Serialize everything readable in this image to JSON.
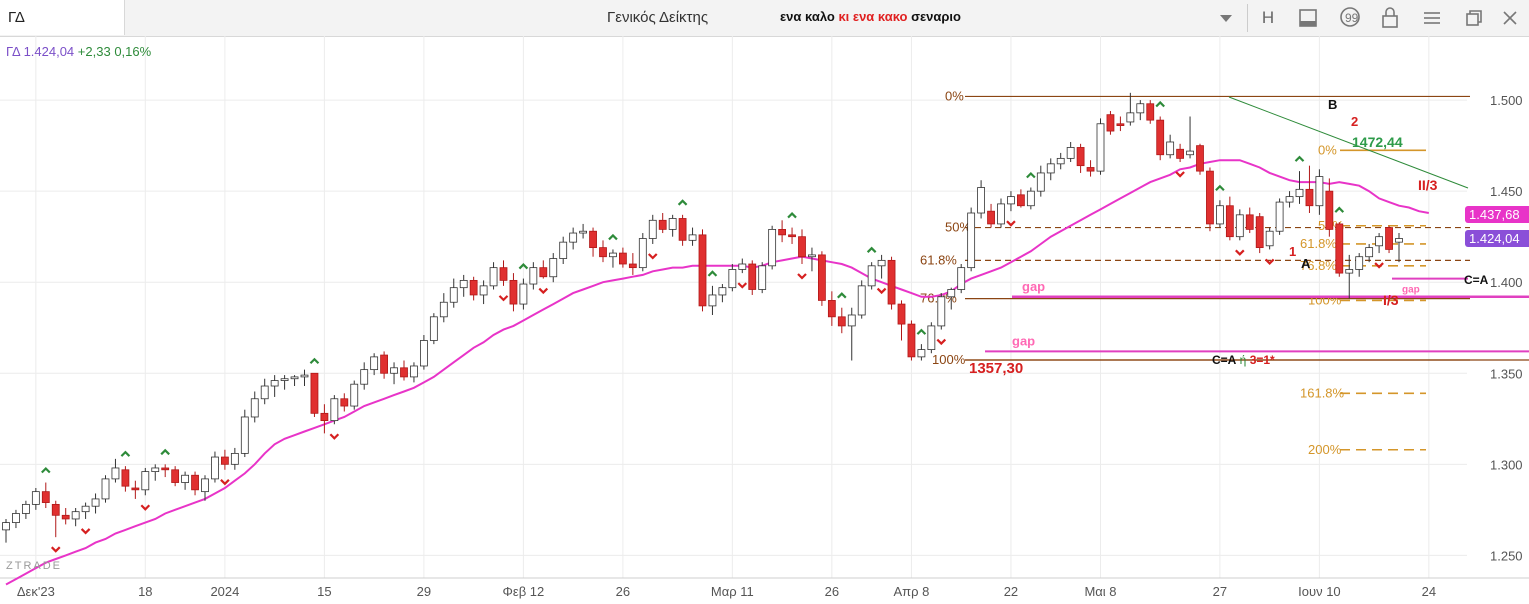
{
  "toolbar": {
    "symbol": "ΓΔ",
    "window_title": "Γενικός Δείκτης",
    "subtitle_part1": "ενα καλο ",
    "subtitle_part2": "κι ενα κακο ",
    "subtitle_part3": "σεναριο",
    "icons": [
      "chevron-down-icon",
      "h-button",
      "panel-icon",
      "comment-icon",
      "lock-icon",
      "menu-icon",
      "restore-icon",
      "close-icon"
    ],
    "h_label": "H"
  },
  "quote": {
    "name": "ΓΔ",
    "price": "1.424,04",
    "change": "+2,33",
    "pct": "0,16%"
  },
  "colors": {
    "up": "#ffffff",
    "down": "#e03030",
    "ma": "#e834c8",
    "fib_brown": "#8b4513",
    "fib_gold": "#d4962a",
    "gap_line": "#e040c0",
    "green_arrow": "#2e8b3a",
    "red_arrow": "#d62020"
  },
  "chart_data": {
    "type": "candlestick",
    "watermark": "ZTRADE",
    "x_ticks": [
      "Δεκ'23",
      "18",
      "2024",
      "15",
      "29",
      "Φεβ 12",
      "26",
      "Μαρ 11",
      "26",
      "Απρ 8",
      "22",
      "Μαι 8",
      "27",
      "Ιουν 10",
      "24"
    ],
    "y_ticks": [
      "1.500",
      "1.450",
      "1.400",
      "1.350",
      "1.300",
      "1.250"
    ],
    "y_tick_values": [
      1500,
      1450,
      1400,
      1350,
      1300,
      1250
    ],
    "ylim": [
      1223.3,
      1535.2
    ],
    "price_tags": [
      {
        "value": 1437.68,
        "label": "1.437,68",
        "color": "#e834c8"
      },
      {
        "value": 1424.04,
        "label": "1.424,04",
        "color": "#8a4fd8"
      }
    ],
    "candles": [
      {
        "o": 1264,
        "h": 1270,
        "l": 1257,
        "c": 1268
      },
      {
        "o": 1268,
        "h": 1275,
        "l": 1265,
        "c": 1273
      },
      {
        "o": 1273,
        "h": 1280,
        "l": 1270,
        "c": 1278
      },
      {
        "o": 1278,
        "h": 1287,
        "l": 1275,
        "c": 1285
      },
      {
        "o": 1285,
        "h": 1290,
        "l": 1276,
        "c": 1279
      },
      {
        "o": 1278,
        "h": 1280,
        "l": 1260,
        "c": 1272
      },
      {
        "o": 1272,
        "h": 1276,
        "l": 1267,
        "c": 1270
      },
      {
        "o": 1270,
        "h": 1276,
        "l": 1266,
        "c": 1274
      },
      {
        "o": 1274,
        "h": 1279,
        "l": 1270,
        "c": 1277
      },
      {
        "o": 1277,
        "h": 1284,
        "l": 1273,
        "c": 1281
      },
      {
        "o": 1281,
        "h": 1294,
        "l": 1279,
        "c": 1292
      },
      {
        "o": 1292,
        "h": 1303,
        "l": 1290,
        "c": 1298
      },
      {
        "o": 1297,
        "h": 1299,
        "l": 1285,
        "c": 1288
      },
      {
        "o": 1287,
        "h": 1291,
        "l": 1281,
        "c": 1286
      },
      {
        "o": 1286,
        "h": 1298,
        "l": 1283,
        "c": 1296
      },
      {
        "o": 1296,
        "h": 1300,
        "l": 1291,
        "c": 1298
      },
      {
        "o": 1298,
        "h": 1300,
        "l": 1293,
        "c": 1297
      },
      {
        "o": 1297,
        "h": 1299,
        "l": 1288,
        "c": 1290
      },
      {
        "o": 1290,
        "h": 1296,
        "l": 1286,
        "c": 1294
      },
      {
        "o": 1294,
        "h": 1296,
        "l": 1283,
        "c": 1286
      },
      {
        "o": 1285,
        "h": 1294,
        "l": 1280,
        "c": 1292
      },
      {
        "o": 1292,
        "h": 1307,
        "l": 1290,
        "c": 1304
      },
      {
        "o": 1304,
        "h": 1308,
        "l": 1297,
        "c": 1300
      },
      {
        "o": 1300,
        "h": 1309,
        "l": 1297,
        "c": 1306
      },
      {
        "o": 1306,
        "h": 1330,
        "l": 1304,
        "c": 1326
      },
      {
        "o": 1326,
        "h": 1340,
        "l": 1323,
        "c": 1336
      },
      {
        "o": 1336,
        "h": 1347,
        "l": 1333,
        "c": 1343
      },
      {
        "o": 1343,
        "h": 1349,
        "l": 1337,
        "c": 1346
      },
      {
        "o": 1346,
        "h": 1349,
        "l": 1341,
        "c": 1347
      },
      {
        "o": 1347,
        "h": 1349,
        "l": 1343,
        "c": 1348
      },
      {
        "o": 1348,
        "h": 1352,
        "l": 1343,
        "c": 1349
      },
      {
        "o": 1350,
        "h": 1350,
        "l": 1326,
        "c": 1328
      },
      {
        "o": 1328,
        "h": 1333,
        "l": 1317,
        "c": 1324
      },
      {
        "o": 1324,
        "h": 1338,
        "l": 1322,
        "c": 1336
      },
      {
        "o": 1336,
        "h": 1339,
        "l": 1329,
        "c": 1332
      },
      {
        "o": 1332,
        "h": 1346,
        "l": 1330,
        "c": 1344
      },
      {
        "o": 1344,
        "h": 1356,
        "l": 1341,
        "c": 1352
      },
      {
        "o": 1352,
        "h": 1361,
        "l": 1349,
        "c": 1359
      },
      {
        "o": 1360,
        "h": 1362,
        "l": 1347,
        "c": 1350
      },
      {
        "o": 1350,
        "h": 1356,
        "l": 1344,
        "c": 1353
      },
      {
        "o": 1353,
        "h": 1357,
        "l": 1346,
        "c": 1348
      },
      {
        "o": 1348,
        "h": 1356,
        "l": 1345,
        "c": 1354
      },
      {
        "o": 1354,
        "h": 1371,
        "l": 1352,
        "c": 1368
      },
      {
        "o": 1368,
        "h": 1383,
        "l": 1366,
        "c": 1381
      },
      {
        "o": 1381,
        "h": 1394,
        "l": 1378,
        "c": 1389
      },
      {
        "o": 1389,
        "h": 1402,
        "l": 1386,
        "c": 1397
      },
      {
        "o": 1397,
        "h": 1404,
        "l": 1392,
        "c": 1401
      },
      {
        "o": 1401,
        "h": 1403,
        "l": 1390,
        "c": 1393
      },
      {
        "o": 1393,
        "h": 1401,
        "l": 1388,
        "c": 1398
      },
      {
        "o": 1398,
        "h": 1411,
        "l": 1396,
        "c": 1408
      },
      {
        "o": 1408,
        "h": 1412,
        "l": 1398,
        "c": 1401
      },
      {
        "o": 1401,
        "h": 1405,
        "l": 1384,
        "c": 1388
      },
      {
        "o": 1388,
        "h": 1402,
        "l": 1385,
        "c": 1399
      },
      {
        "o": 1399,
        "h": 1411,
        "l": 1396,
        "c": 1408
      },
      {
        "o": 1408,
        "h": 1412,
        "l": 1402,
        "c": 1403
      },
      {
        "o": 1403,
        "h": 1416,
        "l": 1400,
        "c": 1413
      },
      {
        "o": 1413,
        "h": 1425,
        "l": 1410,
        "c": 1422
      },
      {
        "o": 1422,
        "h": 1430,
        "l": 1418,
        "c": 1427
      },
      {
        "o": 1427,
        "h": 1432,
        "l": 1424,
        "c": 1428
      },
      {
        "o": 1428,
        "h": 1430,
        "l": 1414,
        "c": 1419
      },
      {
        "o": 1419,
        "h": 1423,
        "l": 1411,
        "c": 1414
      },
      {
        "o": 1414,
        "h": 1418,
        "l": 1408,
        "c": 1416
      },
      {
        "o": 1416,
        "h": 1419,
        "l": 1408,
        "c": 1410
      },
      {
        "o": 1410,
        "h": 1416,
        "l": 1404,
        "c": 1408
      },
      {
        "o": 1408,
        "h": 1427,
        "l": 1406,
        "c": 1424
      },
      {
        "o": 1424,
        "h": 1437,
        "l": 1421,
        "c": 1434
      },
      {
        "o": 1434,
        "h": 1438,
        "l": 1427,
        "c": 1429
      },
      {
        "o": 1429,
        "h": 1437,
        "l": 1425,
        "c": 1435
      },
      {
        "o": 1435,
        "h": 1437,
        "l": 1420,
        "c": 1423
      },
      {
        "o": 1423,
        "h": 1430,
        "l": 1420,
        "c": 1426
      },
      {
        "o": 1426,
        "h": 1429,
        "l": 1384,
        "c": 1387
      },
      {
        "o": 1387,
        "h": 1398,
        "l": 1382,
        "c": 1393
      },
      {
        "o": 1393,
        "h": 1399,
        "l": 1389,
        "c": 1397
      },
      {
        "o": 1397,
        "h": 1410,
        "l": 1395,
        "c": 1407
      },
      {
        "o": 1407,
        "h": 1413,
        "l": 1405,
        "c": 1410
      },
      {
        "o": 1410,
        "h": 1412,
        "l": 1393,
        "c": 1396
      },
      {
        "o": 1396,
        "h": 1411,
        "l": 1394,
        "c": 1409
      },
      {
        "o": 1409,
        "h": 1431,
        "l": 1407,
        "c": 1429
      },
      {
        "o": 1429,
        "h": 1434,
        "l": 1422,
        "c": 1426
      },
      {
        "o": 1426,
        "h": 1430,
        "l": 1421,
        "c": 1425
      },
      {
        "o": 1425,
        "h": 1429,
        "l": 1410,
        "c": 1414
      },
      {
        "o": 1414,
        "h": 1419,
        "l": 1406,
        "c": 1415
      },
      {
        "o": 1415,
        "h": 1417,
        "l": 1387,
        "c": 1390
      },
      {
        "o": 1390,
        "h": 1395,
        "l": 1376,
        "c": 1381
      },
      {
        "o": 1381,
        "h": 1386,
        "l": 1372,
        "c": 1376
      },
      {
        "o": 1376,
        "h": 1386,
        "l": 1357,
        "c": 1382
      },
      {
        "o": 1382,
        "h": 1401,
        "l": 1380,
        "c": 1398
      },
      {
        "o": 1398,
        "h": 1411,
        "l": 1396,
        "c": 1409
      },
      {
        "o": 1409,
        "h": 1415,
        "l": 1402,
        "c": 1412
      },
      {
        "o": 1412,
        "h": 1414,
        "l": 1385,
        "c": 1388
      },
      {
        "o": 1388,
        "h": 1390,
        "l": 1368,
        "c": 1377
      },
      {
        "o": 1377,
        "h": 1379,
        "l": 1357,
        "c": 1359
      },
      {
        "o": 1359,
        "h": 1366,
        "l": 1357,
        "c": 1363
      },
      {
        "o": 1363,
        "h": 1378,
        "l": 1361,
        "c": 1376
      },
      {
        "o": 1376,
        "h": 1394,
        "l": 1374,
        "c": 1392
      },
      {
        "o": 1392,
        "h": 1397,
        "l": 1385,
        "c": 1396
      },
      {
        "o": 1396,
        "h": 1410,
        "l": 1394,
        "c": 1408
      },
      {
        "o": 1408,
        "h": 1441,
        "l": 1406,
        "c": 1438
      },
      {
        "o": 1438,
        "h": 1456,
        "l": 1435,
        "c": 1452
      },
      {
        "o": 1439,
        "h": 1443,
        "l": 1430,
        "c": 1432
      },
      {
        "o": 1432,
        "h": 1446,
        "l": 1430,
        "c": 1443
      },
      {
        "o": 1443,
        "h": 1450,
        "l": 1439,
        "c": 1447
      },
      {
        "o": 1448,
        "h": 1451,
        "l": 1441,
        "c": 1442
      },
      {
        "o": 1442,
        "h": 1452,
        "l": 1440,
        "c": 1450
      },
      {
        "o": 1450,
        "h": 1464,
        "l": 1447,
        "c": 1460
      },
      {
        "o": 1460,
        "h": 1468,
        "l": 1456,
        "c": 1465
      },
      {
        "o": 1465,
        "h": 1471,
        "l": 1462,
        "c": 1468
      },
      {
        "o": 1468,
        "h": 1477,
        "l": 1466,
        "c": 1474
      },
      {
        "o": 1474,
        "h": 1476,
        "l": 1460,
        "c": 1464
      },
      {
        "o": 1463,
        "h": 1467,
        "l": 1458,
        "c": 1461
      },
      {
        "o": 1461,
        "h": 1490,
        "l": 1459,
        "c": 1487
      },
      {
        "o": 1492,
        "h": 1494,
        "l": 1481,
        "c": 1483
      },
      {
        "o": 1487,
        "h": 1491,
        "l": 1483,
        "c": 1486
      },
      {
        "o": 1488,
        "h": 1504,
        "l": 1486,
        "c": 1493
      },
      {
        "o": 1493,
        "h": 1500,
        "l": 1489,
        "c": 1498
      },
      {
        "o": 1498,
        "h": 1500,
        "l": 1487,
        "c": 1489
      },
      {
        "o": 1489,
        "h": 1491,
        "l": 1467,
        "c": 1470
      },
      {
        "o": 1470,
        "h": 1481,
        "l": 1468,
        "c": 1477
      },
      {
        "o": 1473,
        "h": 1476,
        "l": 1466,
        "c": 1468
      },
      {
        "o": 1470,
        "h": 1491,
        "l": 1468,
        "c": 1472
      },
      {
        "o": 1475,
        "h": 1476,
        "l": 1459,
        "c": 1461
      },
      {
        "o": 1461,
        "h": 1463,
        "l": 1428,
        "c": 1432
      },
      {
        "o": 1432,
        "h": 1445,
        "l": 1430,
        "c": 1442
      },
      {
        "o": 1442,
        "h": 1447,
        "l": 1423,
        "c": 1425
      },
      {
        "o": 1425,
        "h": 1440,
        "l": 1423,
        "c": 1437
      },
      {
        "o": 1437,
        "h": 1441,
        "l": 1427,
        "c": 1429
      },
      {
        "o": 1436,
        "h": 1438,
        "l": 1416,
        "c": 1419
      },
      {
        "o": 1420,
        "h": 1430,
        "l": 1418,
        "c": 1428
      },
      {
        "o": 1428,
        "h": 1446,
        "l": 1426,
        "c": 1444
      },
      {
        "o": 1444,
        "h": 1450,
        "l": 1441,
        "c": 1447
      },
      {
        "o": 1447,
        "h": 1461,
        "l": 1443,
        "c": 1451
      },
      {
        "o": 1451,
        "h": 1464,
        "l": 1438,
        "c": 1442
      },
      {
        "o": 1442,
        "h": 1462,
        "l": 1437,
        "c": 1458
      },
      {
        "o": 1450,
        "h": 1457,
        "l": 1425,
        "c": 1429
      },
      {
        "o": 1432,
        "h": 1433,
        "l": 1403,
        "c": 1405
      },
      {
        "o": 1405,
        "h": 1415,
        "l": 1391,
        "c": 1407
      },
      {
        "o": 1407,
        "h": 1416,
        "l": 1403,
        "c": 1414
      },
      {
        "o": 1414,
        "h": 1421,
        "l": 1411,
        "c": 1419
      },
      {
        "o": 1420,
        "h": 1427,
        "l": 1416,
        "c": 1425
      },
      {
        "o": 1430,
        "h": 1431,
        "l": 1416,
        "c": 1418
      },
      {
        "o": 1422,
        "h": 1427,
        "l": 1411,
        "c": 1424
      }
    ],
    "moving_average": [
      1234,
      1237,
      1240,
      1243,
      1246,
      1248,
      1250,
      1252,
      1254,
      1257,
      1259,
      1262,
      1264,
      1266,
      1268,
      1270,
      1273,
      1275,
      1277,
      1279,
      1281,
      1284,
      1287,
      1291,
      1295,
      1300,
      1306,
      1311,
      1314,
      1316,
      1318,
      1320,
      1322,
      1324,
      1326,
      1329,
      1332,
      1334,
      1336,
      1338,
      1340,
      1342,
      1345,
      1348,
      1352,
      1356,
      1360,
      1364,
      1367,
      1371,
      1374,
      1376,
      1379,
      1382,
      1385,
      1388,
      1391,
      1394,
      1396,
      1398,
      1400,
      1401,
      1402,
      1403,
      1404,
      1406,
      1407,
      1408,
      1408,
      1409,
      1409,
      1409,
      1409,
      1409,
      1409,
      1408,
      1409,
      1411,
      1412,
      1413,
      1414,
      1413,
      1412,
      1411,
      1410,
      1408,
      1405,
      1402,
      1400,
      1398,
      1396,
      1394,
      1392,
      1392,
      1393,
      1395,
      1399,
      1402,
      1404,
      1406,
      1408,
      1411,
      1414,
      1417,
      1421,
      1425,
      1428,
      1431,
      1434,
      1437,
      1440,
      1443,
      1446,
      1449,
      1452,
      1455,
      1457,
      1459,
      1462,
      1463,
      1465,
      1466,
      1467,
      1467,
      1467,
      1465,
      1463,
      1460,
      1458,
      1456,
      1455,
      1455,
      1455,
      1454,
      1455,
      1454,
      1453,
      1450,
      1446,
      1444,
      1442,
      1441,
      1439,
      1438
    ],
    "arrows_up": [
      4,
      12,
      16,
      31,
      52,
      61,
      68,
      71,
      79,
      84,
      87,
      92,
      103,
      116,
      122,
      130,
      134
    ],
    "arrows_down": [
      5,
      8,
      14,
      22,
      33,
      50,
      54,
      65,
      74,
      80,
      88,
      94,
      101,
      118,
      124,
      127,
      138
    ],
    "fib_levels": [
      {
        "label": "0%",
        "value": 1502,
        "color": "#8b4513",
        "style": "solid"
      },
      {
        "label": "50%",
        "value": 1430,
        "color": "#8b4513",
        "style": "dashed"
      },
      {
        "label": "61.8%",
        "value": 1412,
        "color": "#8b4513",
        "style": "dashed"
      },
      {
        "label": "76.8%",
        "value": 1391,
        "color": "#8b4513",
        "style": "solid"
      },
      {
        "label": "100%",
        "value": 1357.3,
        "color": "#8b4513",
        "style": "solid"
      },
      {
        "label": "0%",
        "value": 1472.44,
        "color": "#d4962a",
        "style": "solid"
      },
      {
        "label": "50%",
        "value": 1431,
        "color": "#d4962a",
        "style": "dashed"
      },
      {
        "label": "61.8%",
        "value": 1421,
        "color": "#d4962a",
        "style": "dashed"
      },
      {
        "label": "76.8%",
        "value": 1409,
        "color": "#d4962a",
        "style": "dashed"
      },
      {
        "label": "100%",
        "value": 1390,
        "color": "#d4962a",
        "style": "dashed"
      },
      {
        "label": "161.8%",
        "value": 1339,
        "color": "#d4962a",
        "style": "dashed"
      },
      {
        "label": "200%",
        "value": 1308,
        "color": "#d4962a",
        "style": "dashed"
      }
    ],
    "gap_lines": [
      {
        "label": "gap",
        "value": 1392
      },
      {
        "label": "gap",
        "value": 1362
      },
      {
        "label": "gap",
        "value": 1402
      }
    ],
    "annotations": {
      "low": "1357,30",
      "high_b": "1472,44",
      "wave_b": "B",
      "wave_2": "2",
      "wave_1": "1",
      "wave_a": "A",
      "wave_ii3": "II/3",
      "wave_i3": "I/3",
      "c_eq_a": "C=A",
      "c_eq_a2": "C=A",
      "eta": " ή ",
      "three": "3=1*"
    }
  }
}
